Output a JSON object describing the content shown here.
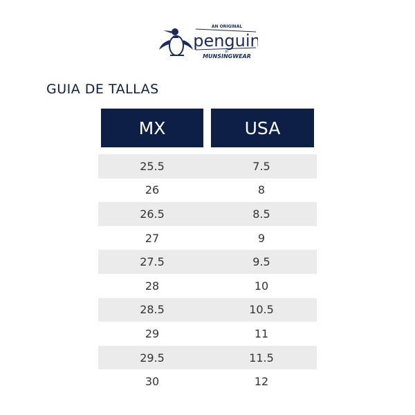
{
  "brand": {
    "logo_text": "AN ORIGINAL penguin BY MUNSINGWEAR",
    "colors": {
      "navy": "#0d1f45",
      "row_stripe": "#ebebeb"
    }
  },
  "title": "GUIA DE TALLAS",
  "table": {
    "headers": [
      "MX",
      "USA"
    ],
    "rows": [
      [
        "25.5",
        "7.5"
      ],
      [
        "26",
        "8"
      ],
      [
        "26.5",
        "8.5"
      ],
      [
        "27",
        "9"
      ],
      [
        "27.5",
        "9.5"
      ],
      [
        "28",
        "10"
      ],
      [
        "28.5",
        "10.5"
      ],
      [
        "29",
        "11"
      ],
      [
        "29.5",
        "11.5"
      ],
      [
        "30",
        "12"
      ]
    ]
  }
}
